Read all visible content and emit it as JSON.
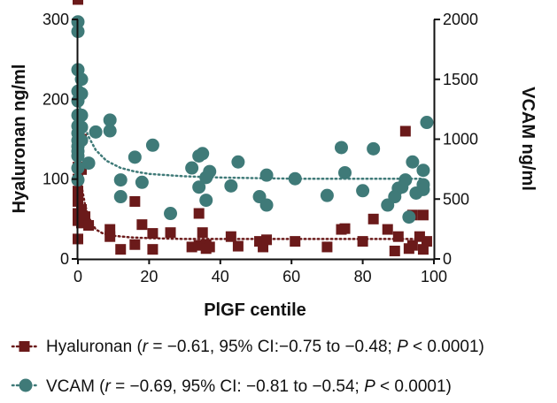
{
  "chart_data": {
    "type": "scatter",
    "x_axis": {
      "label": "PlGF centile",
      "range": [
        0,
        100
      ],
      "ticks": [
        0,
        20,
        40,
        60,
        80,
        100
      ],
      "tick_labels": [
        "0",
        "20",
        "40",
        "60",
        "80",
        "100"
      ]
    },
    "y_axis_left": {
      "label": "Hyaluronan ng/ml",
      "range": [
        0,
        300
      ],
      "ticks": [
        0,
        100,
        200,
        300
      ],
      "tick_labels": [
        "0",
        "100",
        "200",
        "300"
      ]
    },
    "y_axis_right": {
      "label": "VCAM ng/ml",
      "range": [
        0,
        2000
      ],
      "ticks": [
        0,
        500,
        1000,
        1500,
        2000
      ],
      "tick_labels": [
        "0",
        "500",
        "1000",
        "1500",
        "2000"
      ]
    },
    "grid": false,
    "legend_position": "bottom",
    "series": [
      {
        "name": "Hyaluronan",
        "axis": "left",
        "marker": "square",
        "color": "#6b1a1a",
        "legend_prefix": "Hyaluronan (",
        "legend_r": "r",
        "legend_mid": " = −0.61, 95% CI:−0.75 to −0.48; ",
        "legend_p": "P",
        "legend_end": " < 0.0001)",
        "fit_line": {
          "style": "dotted",
          "x": [
            0.3,
            1,
            2,
            3,
            5,
            7,
            10,
            15,
            20,
            30,
            40,
            60,
            80,
            97
          ],
          "y": [
            125,
            92,
            68,
            52,
            37,
            32,
            29,
            27,
            26,
            25,
            25,
            25,
            25,
            25
          ]
        },
        "points": [
          {
            "x": 0,
            "y": 325
          },
          {
            "x": 0,
            "y": 160
          },
          {
            "x": 0,
            "y": 140
          },
          {
            "x": 0,
            "y": 132
          },
          {
            "x": 0,
            "y": 115
          },
          {
            "x": 0,
            "y": 100
          },
          {
            "x": 0,
            "y": 85
          },
          {
            "x": 0,
            "y": 72
          },
          {
            "x": 0,
            "y": 57
          },
          {
            "x": 0,
            "y": 48
          },
          {
            "x": 0,
            "y": 25
          },
          {
            "x": 1,
            "y": 150
          },
          {
            "x": 1,
            "y": 112
          },
          {
            "x": 1,
            "y": 62
          },
          {
            "x": 1,
            "y": 45
          },
          {
            "x": 2,
            "y": 53
          },
          {
            "x": 3,
            "y": 42
          },
          {
            "x": 9,
            "y": 37
          },
          {
            "x": 9,
            "y": 28
          },
          {
            "x": 12,
            "y": 12
          },
          {
            "x": 16,
            "y": 18
          },
          {
            "x": 16,
            "y": 72
          },
          {
            "x": 18,
            "y": 43
          },
          {
            "x": 21,
            "y": 32
          },
          {
            "x": 21,
            "y": 12
          },
          {
            "x": 26,
            "y": 33
          },
          {
            "x": 32,
            "y": 15
          },
          {
            "x": 34,
            "y": 17
          },
          {
            "x": 34,
            "y": 57
          },
          {
            "x": 35,
            "y": 33
          },
          {
            "x": 36,
            "y": 18
          },
          {
            "x": 36,
            "y": 13
          },
          {
            "x": 37,
            "y": 15
          },
          {
            "x": 43,
            "y": 28
          },
          {
            "x": 45,
            "y": 16
          },
          {
            "x": 51,
            "y": 22
          },
          {
            "x": 52,
            "y": 15
          },
          {
            "x": 53,
            "y": 24
          },
          {
            "x": 61,
            "y": 22
          },
          {
            "x": 70,
            "y": 15
          },
          {
            "x": 74,
            "y": 37
          },
          {
            "x": 75,
            "y": 38
          },
          {
            "x": 80,
            "y": 22
          },
          {
            "x": 83,
            "y": 50
          },
          {
            "x": 87,
            "y": 37
          },
          {
            "x": 89,
            "y": 10
          },
          {
            "x": 90,
            "y": 28
          },
          {
            "x": 92,
            "y": 160
          },
          {
            "x": 93,
            "y": 13
          },
          {
            "x": 94,
            "y": 55
          },
          {
            "x": 94,
            "y": 17
          },
          {
            "x": 96,
            "y": 28
          },
          {
            "x": 97,
            "y": 55
          },
          {
            "x": 97,
            "y": 12
          },
          {
            "x": 98,
            "y": 22
          }
        ]
      },
      {
        "name": "VCAM",
        "axis": "right",
        "marker": "circle",
        "color": "#3f7a78",
        "legend_prefix": "VCAM (",
        "legend_r": "r",
        "legend_mid": " = −0.69, 95% CI: −0.81 to −0.54; ",
        "legend_p": "P",
        "legend_end": " < 0.0001)",
        "fit_line": {
          "style": "dotted",
          "x": [
            0.3,
            1,
            2,
            3,
            5,
            8,
            12,
            16,
            20,
            30,
            40,
            60,
            80,
            97
          ],
          "y": [
            1300,
            1200,
            1100,
            1020,
            910,
            820,
            760,
            730,
            710,
            690,
            680,
            670,
            670,
            670
          ]
        },
        "points": [
          {
            "x": 0,
            "y": 1980
          },
          {
            "x": 0,
            "y": 1900
          },
          {
            "x": 0,
            "y": 1580
          },
          {
            "x": 0,
            "y": 1400
          },
          {
            "x": 0,
            "y": 1320
          },
          {
            "x": 0,
            "y": 1200
          },
          {
            "x": 0,
            "y": 1110
          },
          {
            "x": 0,
            "y": 1050
          },
          {
            "x": 0,
            "y": 990
          },
          {
            "x": 0,
            "y": 940
          },
          {
            "x": 0,
            "y": 900
          },
          {
            "x": 0,
            "y": 860
          },
          {
            "x": 0,
            "y": 760
          },
          {
            "x": 0,
            "y": 660
          },
          {
            "x": 1,
            "y": 1500
          },
          {
            "x": 1,
            "y": 1380
          },
          {
            "x": 1,
            "y": 1200
          },
          {
            "x": 1,
            "y": 1100
          },
          {
            "x": 1,
            "y": 990
          },
          {
            "x": 3,
            "y": 800
          },
          {
            "x": 5,
            "y": 1060
          },
          {
            "x": 9,
            "y": 1160
          },
          {
            "x": 9,
            "y": 1070
          },
          {
            "x": 12,
            "y": 660
          },
          {
            "x": 12,
            "y": 520
          },
          {
            "x": 16,
            "y": 850
          },
          {
            "x": 18,
            "y": 640
          },
          {
            "x": 21,
            "y": 950
          },
          {
            "x": 26,
            "y": 380
          },
          {
            "x": 32,
            "y": 760
          },
          {
            "x": 34,
            "y": 860
          },
          {
            "x": 34,
            "y": 600
          },
          {
            "x": 35,
            "y": 880
          },
          {
            "x": 36,
            "y": 680
          },
          {
            "x": 36,
            "y": 490
          },
          {
            "x": 37,
            "y": 730
          },
          {
            "x": 43,
            "y": 610
          },
          {
            "x": 45,
            "y": 810
          },
          {
            "x": 51,
            "y": 520
          },
          {
            "x": 53,
            "y": 700
          },
          {
            "x": 53,
            "y": 450
          },
          {
            "x": 61,
            "y": 670
          },
          {
            "x": 70,
            "y": 530
          },
          {
            "x": 74,
            "y": 930
          },
          {
            "x": 75,
            "y": 720
          },
          {
            "x": 80,
            "y": 570
          },
          {
            "x": 83,
            "y": 920
          },
          {
            "x": 87,
            "y": 450
          },
          {
            "x": 89,
            "y": 520
          },
          {
            "x": 90,
            "y": 590
          },
          {
            "x": 91,
            "y": 600
          },
          {
            "x": 92,
            "y": 660
          },
          {
            "x": 93,
            "y": 350
          },
          {
            "x": 94,
            "y": 810
          },
          {
            "x": 95,
            "y": 550
          },
          {
            "x": 97,
            "y": 740
          },
          {
            "x": 97,
            "y": 620
          },
          {
            "x": 97,
            "y": 580
          },
          {
            "x": 98,
            "y": 1140
          }
        ]
      }
    ]
  }
}
